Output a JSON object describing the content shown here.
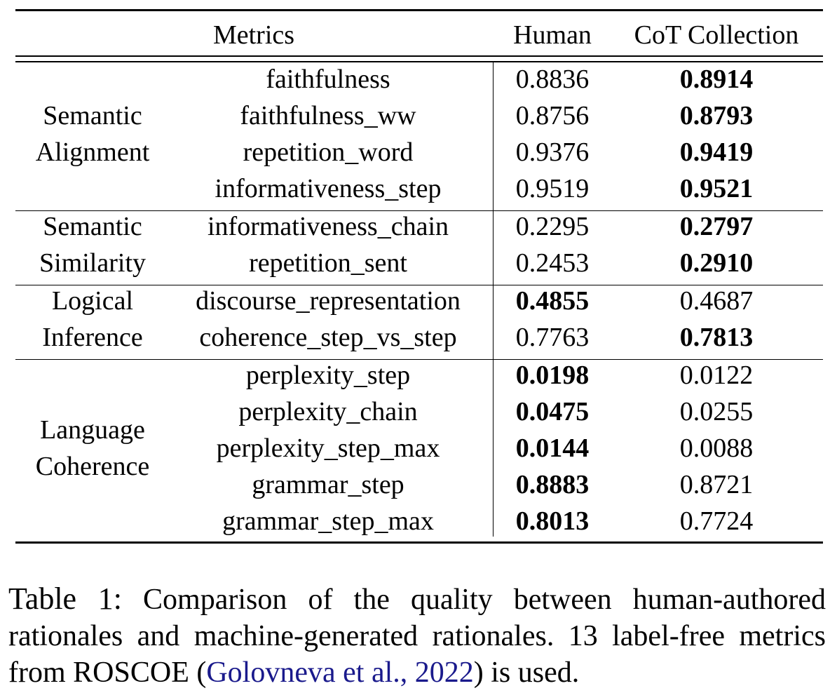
{
  "table": {
    "headers": {
      "metrics": "Metrics",
      "human": "Human",
      "cot": "CoT Collection"
    },
    "groups": [
      {
        "lines": [
          "Semantic",
          "Alignment"
        ],
        "rows": [
          {
            "metric": "faithfulness",
            "human": "0.8836",
            "cot": "0.8914",
            "best": "cot"
          },
          {
            "metric": "faithfulness_ww",
            "human": "0.8756",
            "cot": "0.8793",
            "best": "cot"
          },
          {
            "metric": "repetition_word",
            "human": "0.9376",
            "cot": "0.9419",
            "best": "cot"
          },
          {
            "metric": "informativeness_step",
            "human": "0.9519",
            "cot": "0.9521",
            "best": "cot"
          }
        ]
      },
      {
        "lines": [
          "Semantic",
          "Similarity"
        ],
        "rows": [
          {
            "metric": "informativeness_chain",
            "human": "0.2295",
            "cot": "0.2797",
            "best": "cot"
          },
          {
            "metric": "repetition_sent",
            "human": "0.2453",
            "cot": "0.2910",
            "best": "cot"
          }
        ]
      },
      {
        "lines": [
          "Logical",
          "Inference"
        ],
        "rows": [
          {
            "metric": "discourse_representation",
            "human": "0.4855",
            "cot": "0.4687",
            "best": "human"
          },
          {
            "metric": "coherence_step_vs_step",
            "human": "0.7763",
            "cot": "0.7813",
            "best": "cot"
          }
        ]
      },
      {
        "lines": [
          "Language",
          "Coherence"
        ],
        "rows": [
          {
            "metric": "perplexity_step",
            "human": "0.0198",
            "cot": "0.0122",
            "best": "human"
          },
          {
            "metric": "perplexity_chain",
            "human": "0.0475",
            "cot": "0.0255",
            "best": "human"
          },
          {
            "metric": "perplexity_step_max",
            "human": "0.0144",
            "cot": "0.0088",
            "best": "human"
          },
          {
            "metric": "grammar_step",
            "human": "0.8883",
            "cot": "0.8721",
            "best": "human"
          },
          {
            "metric": "grammar_step_max",
            "human": "0.8013",
            "cot": "0.7724",
            "best": "human"
          }
        ]
      }
    ]
  },
  "caption": {
    "label": "Table 1:",
    "text_before": " Comparison of the quality between human-authored rationales and machine-generated rationales.  13 label-free metrics from ROSCOE (",
    "citation": "Golovneva et al., 2022",
    "text_after": ") is used.",
    "citation_color": "#1a1a8c"
  }
}
